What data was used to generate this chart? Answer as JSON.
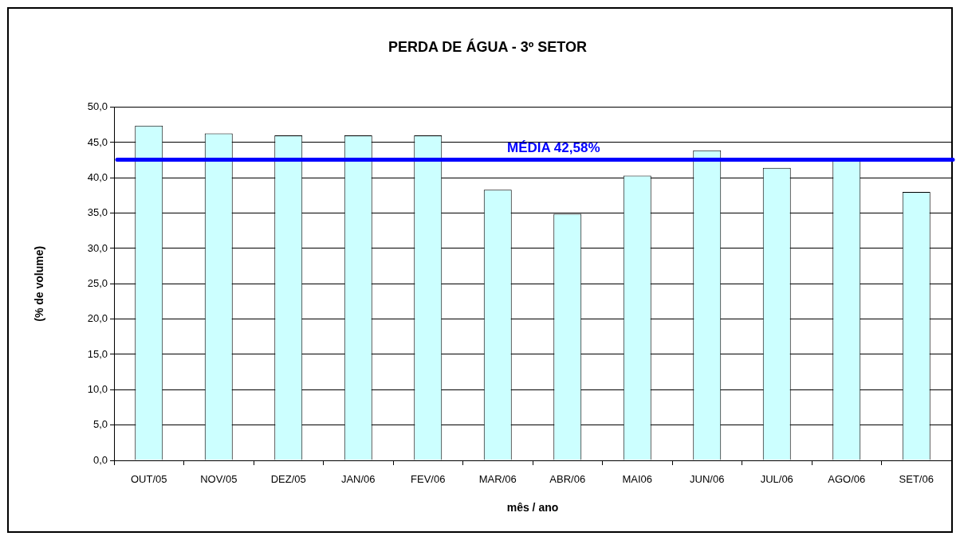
{
  "chart_data": {
    "type": "bar",
    "title": "PERDA DE ÁGUA - 3º SETOR",
    "xlabel": "mês / ano",
    "ylabel": "(% de volume)",
    "categories": [
      "OUT/05",
      "NOV/05",
      "DEZ/05",
      "JAN/06",
      "FEV/06",
      "MAR/06",
      "ABR/06",
      "MAI06",
      "JUN/06",
      "JUL/06",
      "AGO/06",
      "SET/06"
    ],
    "values": [
      47.4,
      46.3,
      46.0,
      46.0,
      46.0,
      38.3,
      34.9,
      40.3,
      43.9,
      41.4,
      42.5,
      38.0
    ],
    "color": "#ccffff",
    "ylim": [
      0,
      50
    ],
    "yticks": [
      {
        "value": 0,
        "label": "0,0"
      },
      {
        "value": 5,
        "label": "5,0"
      },
      {
        "value": 10,
        "label": "10,0"
      },
      {
        "value": 15,
        "label": "15,0"
      },
      {
        "value": 20,
        "label": "20,0"
      },
      {
        "value": 25,
        "label": "25,0"
      },
      {
        "value": 30,
        "label": "30,0"
      },
      {
        "value": 35,
        "label": "35,0"
      },
      {
        "value": 40,
        "label": "40,0"
      },
      {
        "value": 45,
        "label": "45,0"
      },
      {
        "value": 50,
        "label": "50,0"
      }
    ],
    "grid": "y",
    "legend": false,
    "ref_lines": [
      {
        "axis": "y",
        "value": 42.58,
        "label": "MÉDIA 42,58%",
        "color": "#0000ff"
      }
    ]
  }
}
